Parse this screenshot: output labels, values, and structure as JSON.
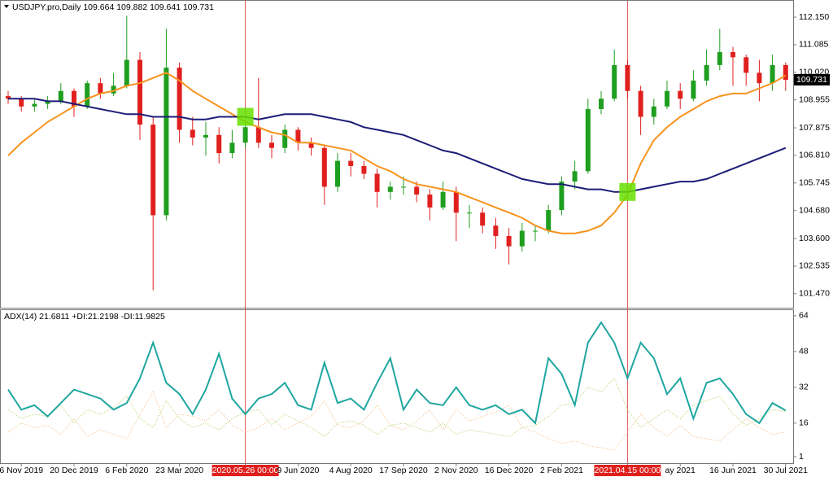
{
  "chart_data": [
    {
      "type": "candlestick",
      "title": "USDJPY.pro,Daily  109.664 109.882 109.641 109.731",
      "categories": [
        null,
        "6 Nov 2019",
        null,
        null,
        null,
        "20 Dec 2019",
        null,
        null,
        null,
        "6 Feb 2020",
        null,
        null,
        null,
        "23 Mar 2020",
        null,
        null,
        null,
        null,
        "2020.05.26 00:00",
        null,
        null,
        null,
        "9 Jun 2020",
        null,
        null,
        null,
        "4 Aug 2020",
        null,
        null,
        null,
        "17 Sep 2020",
        null,
        null,
        null,
        "2 Nov 2020",
        null,
        null,
        null,
        "16 Dec 2020",
        null,
        null,
        null,
        "2 Feb 2021",
        null,
        null,
        null,
        null,
        "2021.04.15 00:00",
        null,
        null,
        null,
        "ay 2021",
        null,
        null,
        null,
        "16 Jun 2021",
        null,
        null,
        null,
        "30 Jul 2021"
      ],
      "open": [
        109.1,
        109.0,
        108.7,
        108.8,
        108.9,
        109.3,
        108.7,
        109.6,
        109.2,
        109.5,
        110.5,
        108.0,
        104.5,
        110.2,
        107.8,
        107.5,
        107.6,
        106.9,
        107.3,
        107.9,
        107.3,
        107.1,
        107.8,
        107.3,
        107.1,
        105.6,
        106.6,
        106.4,
        106.1,
        105.4,
        105.6,
        105.6,
        105.3,
        104.8,
        105.4,
        104.6,
        104.6,
        104.1,
        103.7,
        103.3,
        103.9,
        103.9,
        104.7,
        105.8,
        106.2,
        108.6,
        109.0,
        110.3,
        109.3,
        108.3,
        108.7,
        109.3,
        109.0,
        109.7,
        110.3,
        110.8,
        110.6,
        110.0,
        109.6,
        110.3
      ],
      "high": [
        109.3,
        109.1,
        109.0,
        109.1,
        109.6,
        109.4,
        109.7,
        109.8,
        110.0,
        112.2,
        110.8,
        108.3,
        111.7,
        110.4,
        108.3,
        108.1,
        107.9,
        107.8,
        108.2,
        109.8,
        107.6,
        108.0,
        107.9,
        107.5,
        107.2,
        106.9,
        106.9,
        106.6,
        106.3,
        105.8,
        106.0,
        105.8,
        105.5,
        105.8,
        105.6,
        104.9,
        104.8,
        104.4,
        104.0,
        104.2,
        104.1,
        104.9,
        106.0,
        106.6,
        109.0,
        109.3,
        110.9,
        110.5,
        109.5,
        109.0,
        109.7,
        109.6,
        110.1,
        110.9,
        111.7,
        111.0,
        110.7,
        110.5,
        110.7,
        110.4
      ],
      "low": [
        108.8,
        108.5,
        108.5,
        108.6,
        108.8,
        108.3,
        108.6,
        109.0,
        109.1,
        109.4,
        107.4,
        101.6,
        104.3,
        107.3,
        107.2,
        106.8,
        106.5,
        106.7,
        107.1,
        107.1,
        106.7,
        106.9,
        107.0,
        106.8,
        104.9,
        105.4,
        106.0,
        105.9,
        104.8,
        105.1,
        105.3,
        105.0,
        104.3,
        104.7,
        103.5,
        104.0,
        103.8,
        103.2,
        102.6,
        103.1,
        103.5,
        103.8,
        104.5,
        105.5,
        106.1,
        108.4,
        108.9,
        109.0,
        107.6,
        108.0,
        108.6,
        108.6,
        108.9,
        109.5,
        110.1,
        109.5,
        109.5,
        108.9,
        109.3,
        109.3
      ],
      "close": [
        109.0,
        108.7,
        108.8,
        108.9,
        109.3,
        108.7,
        109.6,
        109.2,
        109.5,
        110.5,
        108.0,
        104.5,
        110.2,
        107.8,
        107.5,
        107.6,
        106.9,
        107.3,
        107.9,
        107.3,
        107.1,
        107.8,
        107.3,
        107.1,
        105.6,
        106.6,
        106.4,
        106.1,
        105.4,
        105.6,
        105.6,
        105.3,
        104.8,
        105.4,
        104.6,
        104.6,
        104.1,
        103.7,
        103.3,
        103.9,
        103.9,
        104.7,
        105.8,
        106.2,
        108.6,
        109.0,
        110.3,
        109.3,
        108.3,
        108.7,
        109.3,
        109.0,
        109.7,
        110.3,
        110.8,
        110.6,
        110.0,
        109.6,
        110.3,
        109.731
      ],
      "up_color": "#1f9e1f",
      "down_color": "#e0201e",
      "series": [
        {
          "color": "#f7931e",
          "values": [
            106.8,
            107.3,
            107.7,
            108.1,
            108.4,
            108.7,
            109.0,
            109.2,
            109.3,
            109.5,
            109.6,
            109.8,
            110.0,
            109.7,
            109.3,
            109.0,
            108.7,
            108.4,
            108.1,
            107.9,
            107.7,
            107.6,
            107.3,
            107.3,
            107.2,
            107.1,
            107.0,
            106.7,
            106.4,
            106.2,
            105.9,
            105.7,
            105.6,
            105.5,
            105.4,
            105.2,
            105.0,
            104.8,
            104.6,
            104.4,
            104.1,
            103.9,
            103.8,
            103.8,
            103.9,
            104.1,
            104.6,
            105.3,
            106.5,
            107.4,
            107.9,
            108.3,
            108.6,
            108.9,
            109.1,
            109.2,
            109.2,
            109.4,
            109.6,
            109.9
          ]
        },
        {
          "color": "#1c1c78",
          "values": [
            109.0,
            109.0,
            109.0,
            108.9,
            108.9,
            108.8,
            108.7,
            108.6,
            108.5,
            108.4,
            108.4,
            108.3,
            108.3,
            108.3,
            108.2,
            108.2,
            108.3,
            108.3,
            108.3,
            108.2,
            108.3,
            108.4,
            108.4,
            108.4,
            108.3,
            108.2,
            108.1,
            107.9,
            107.8,
            107.7,
            107.6,
            107.4,
            107.2,
            107.0,
            106.9,
            106.7,
            106.5,
            106.3,
            106.1,
            105.9,
            105.8,
            105.7,
            105.7,
            105.6,
            105.5,
            105.5,
            105.4,
            105.4,
            105.5,
            105.6,
            105.7,
            105.8,
            105.8,
            105.9,
            106.1,
            106.3,
            106.5,
            106.7,
            106.9,
            107.1
          ]
        }
      ],
      "highlight": [
        18,
        47
      ],
      "ylim": [
        100.93,
        112.78
      ],
      "yticks": [
        {
          "value": 112.15,
          "label": "112.150"
        },
        111.085,
        {
          "value": 110.02,
          "label": "110.020"
        },
        108.955,
        107.875,
        {
          "value": 106.81,
          "label": "106.810"
        },
        105.745,
        {
          "value": 104.68,
          "label": "104.680"
        },
        {
          "value": 103.6,
          "label": "103.600"
        },
        102.535,
        {
          "value": 101.47,
          "label": "101.470"
        }
      ]
    },
    {
      "type": "line",
      "title": "ADX(14) 21.6811 +DI:21.2198 -DI:11.9825",
      "series": [
        {
          "color": "#1fa6a0",
          "style": "solid",
          "values": [
            31,
            22,
            24,
            19,
            25,
            31,
            29,
            27,
            22,
            25,
            36,
            52,
            34,
            29,
            20,
            31,
            47,
            27,
            20,
            27,
            29,
            34,
            24,
            22,
            43,
            25,
            27,
            22,
            34,
            45,
            22,
            31,
            25,
            24,
            32,
            24,
            22,
            24,
            20,
            22,
            16,
            45,
            38,
            24,
            52,
            61,
            52,
            36,
            52,
            45,
            29,
            36,
            18,
            34,
            36,
            29,
            20,
            16,
            25,
            21.6811
          ]
        },
        {
          "color": "#a9cf55",
          "style": "dotted",
          "values": [
            22,
            18,
            20,
            19,
            24,
            16,
            22,
            20,
            23,
            28,
            18,
            14,
            26,
            18,
            14,
            16,
            13,
            18,
            21,
            22,
            15,
            20,
            17,
            14,
            10,
            16,
            17,
            15,
            11,
            15,
            16,
            14,
            12,
            16,
            11,
            13,
            12,
            11,
            10,
            14,
            15,
            19,
            24,
            25,
            32,
            30,
            36,
            22,
            14,
            18,
            22,
            18,
            24,
            26,
            28,
            20,
            15,
            18,
            22,
            21.2198
          ]
        },
        {
          "color": "#f3b57a",
          "style": "dotted",
          "values": [
            12,
            16,
            14,
            15,
            11,
            18,
            10,
            13,
            11,
            9,
            20,
            30,
            14,
            20,
            19,
            17,
            22,
            15,
            12,
            14,
            18,
            13,
            16,
            19,
            26,
            15,
            14,
            17,
            24,
            15,
            13,
            17,
            22,
            13,
            22,
            17,
            19,
            21,
            24,
            14,
            12,
            9,
            7,
            8,
            6,
            5,
            4,
            12,
            20,
            14,
            10,
            15,
            10,
            9,
            8,
            13,
            18,
            14,
            11,
            11.9825
          ]
        }
      ],
      "ylim": [
        -1.9,
        66.5
      ],
      "yticks": [
        64,
        48,
        32,
        16,
        1
      ]
    }
  ]
}
